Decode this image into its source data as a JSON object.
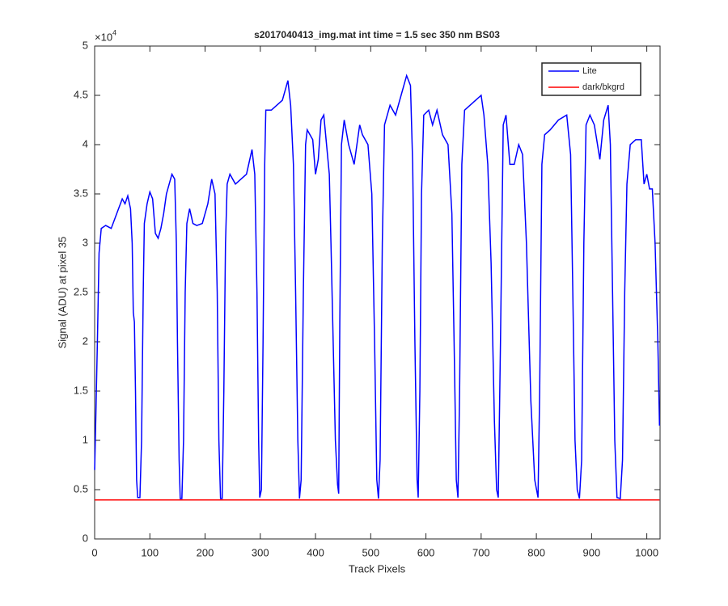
{
  "chart_data": {
    "type": "line",
    "title": "s2017040413_img.mat int time = 1.5 sec  350 nm BS03",
    "x_label": "Track Pixels",
    "y_label": "Signal (ADU) at pixel 35",
    "y_multiplier": "×10",
    "y_multiplier_exp": "4",
    "xlim": [
      0,
      1024
    ],
    "ylim": [
      0,
      50000
    ],
    "xticks": [
      0,
      100,
      200,
      300,
      400,
      500,
      600,
      700,
      800,
      900,
      1000
    ],
    "yticks": [
      0,
      {
        "value": 5000,
        "label": "0.5"
      },
      {
        "value": 10000,
        "label": "1"
      },
      {
        "value": 15000,
        "label": "1.5"
      },
      {
        "value": 20000,
        "label": "2"
      },
      {
        "value": 25000,
        "label": "2.5"
      },
      {
        "value": 30000,
        "label": "3"
      },
      {
        "value": 35000,
        "label": "3.5"
      },
      {
        "value": 40000,
        "label": "4"
      },
      {
        "value": 45000,
        "label": "4.5"
      },
      {
        "value": 50000,
        "label": "5"
      }
    ],
    "grid": false,
    "legend_position": "northeast",
    "series": [
      {
        "name": "Lite",
        "color": "#0000ff",
        "x": [
          0,
          2,
          5,
          8,
          12,
          20,
          30,
          40,
          50,
          55,
          60,
          65,
          68,
          70,
          72,
          74,
          76,
          78,
          82,
          85,
          88,
          90,
          95,
          100,
          105,
          110,
          115,
          120,
          125,
          130,
          135,
          140,
          145,
          148,
          150,
          153,
          155,
          158,
          161,
          164,
          167,
          172,
          178,
          185,
          195,
          205,
          212,
          218,
          222,
          225,
          228,
          231,
          234,
          237,
          240,
          245,
          255,
          265,
          275,
          285,
          290,
          294,
          297,
          299,
          302,
          305,
          308,
          310,
          320,
          330,
          340,
          350,
          355,
          360,
          364,
          368,
          371,
          374,
          378,
          382,
          385,
          395,
          400,
          405,
          410,
          415,
          420,
          425,
          428,
          432,
          436,
          440,
          442,
          444,
          447,
          452,
          460,
          470,
          475,
          480,
          485,
          495,
          502,
          507,
          511,
          514,
          517,
          521,
          525,
          535,
          545,
          555,
          565,
          572,
          576,
          580,
          584,
          586,
          589,
          592,
          596,
          605,
          612,
          620,
          630,
          640,
          647,
          651,
          655,
          658,
          661,
          665,
          670,
          680,
          690,
          700,
          705,
          712,
          718,
          724,
          728,
          731,
          735,
          740,
          745,
          752,
          760,
          768,
          775,
          782,
          790,
          797,
          803,
          806,
          810,
          815,
          825,
          840,
          855,
          862,
          866,
          870,
          874,
          878,
          882,
          886,
          890,
          897,
          905,
          915,
          922,
          930,
          934,
          938,
          942,
          946,
          952,
          956,
          960,
          964,
          970,
          980,
          990,
          995,
          1000,
          1005,
          1010,
          1015,
          1020,
          1023
        ],
        "values": [
          7000,
          12000,
          20000,
          29000,
          31500,
          31800,
          31500,
          33000,
          34500,
          34000,
          34800,
          33500,
          30000,
          23000,
          22000,
          15000,
          6000,
          4200,
          4200,
          10000,
          25000,
          32000,
          34000,
          35200,
          34500,
          31000,
          30500,
          31500,
          33000,
          35000,
          36000,
          37000,
          36500,
          30000,
          20000,
          8000,
          4100,
          4100,
          10000,
          25000,
          32000,
          33500,
          32000,
          31800,
          32000,
          34000,
          36500,
          35000,
          25000,
          10000,
          4100,
          4100,
          15000,
          30000,
          36000,
          37000,
          36000,
          36500,
          37000,
          39500,
          37000,
          25000,
          10000,
          4200,
          5000,
          20000,
          38000,
          43500,
          43500,
          44000,
          44500,
          46500,
          44000,
          38000,
          25000,
          10000,
          4100,
          6000,
          25000,
          40000,
          41500,
          40500,
          37000,
          38500,
          42500,
          43000,
          40000,
          37000,
          30000,
          20000,
          10000,
          5500,
          4600,
          22000,
          40000,
          42500,
          40000,
          38000,
          40000,
          42000,
          41000,
          40000,
          35000,
          20000,
          6000,
          4100,
          8000,
          30000,
          42000,
          44000,
          43000,
          45000,
          47000,
          46000,
          38000,
          20000,
          6000,
          4200,
          15000,
          35000,
          43000,
          43500,
          42000,
          43500,
          41000,
          40000,
          33000,
          20000,
          6000,
          4200,
          15000,
          38000,
          43500,
          44000,
          44500,
          45000,
          43000,
          38000,
          28000,
          12000,
          5000,
          4200,
          20000,
          42000,
          43000,
          38000,
          38000,
          40000,
          39000,
          30000,
          14000,
          6000,
          4200,
          15000,
          38000,
          41000,
          41500,
          42500,
          43000,
          39000,
          25000,
          10000,
          5000,
          4100,
          8000,
          30000,
          42000,
          43000,
          42000,
          38500,
          42500,
          44000,
          40000,
          25000,
          10000,
          4200,
          4100,
          8000,
          25000,
          36000,
          40000,
          40500,
          40500,
          36000,
          37000,
          35500,
          35500,
          30000,
          20000,
          11500
        ]
      },
      {
        "name": "dark/bkgrd",
        "color": "#ff0000",
        "x": [
          0,
          1023
        ],
        "values": [
          3950,
          3950
        ]
      }
    ]
  }
}
